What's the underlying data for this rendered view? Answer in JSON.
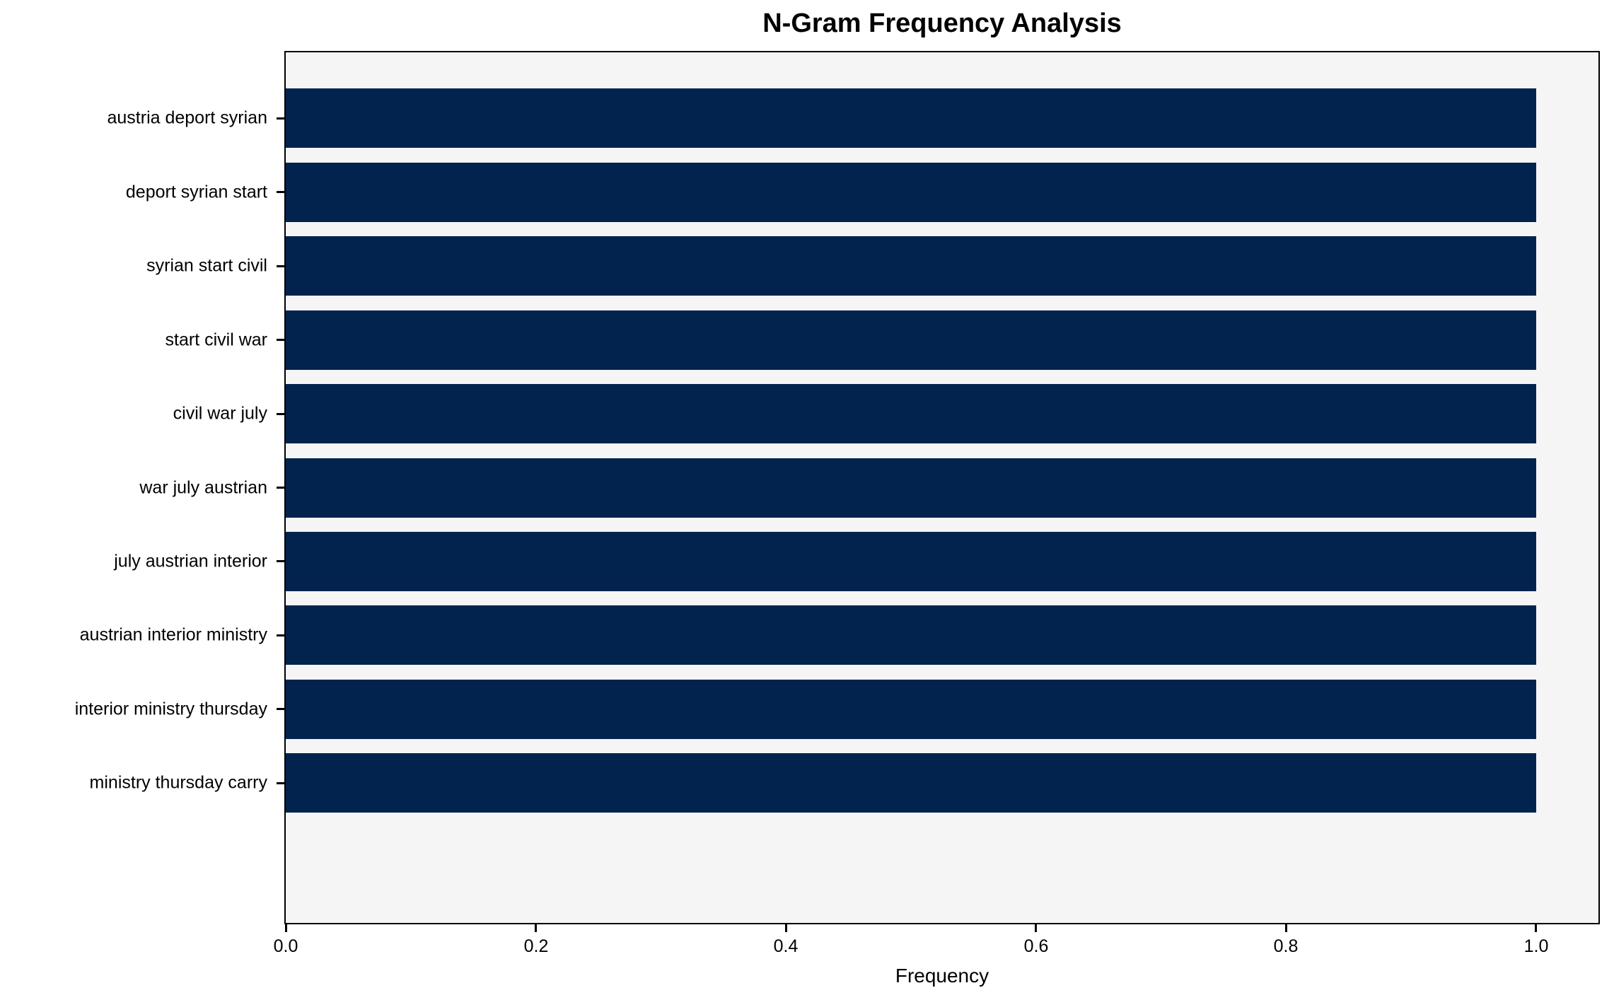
{
  "figure": {
    "title": "N-Gram Frequency Analysis",
    "xlabel": "Frequency"
  },
  "colors": {
    "bar": "#02234e",
    "plot_background": "#f5f5f6",
    "figure_background": "#ffffff",
    "axis": "#000000",
    "text": "#000000"
  },
  "chart_data": {
    "type": "bar",
    "orientation": "horizontal",
    "title": "N-Gram Frequency Analysis",
    "xlabel": "Frequency",
    "ylabel": "",
    "categories": [
      "austria deport syrian",
      "deport syrian start",
      "syrian start civil",
      "start civil war",
      "civil war july",
      "war july austrian",
      "july austrian interior",
      "austrian interior ministry",
      "interior ministry thursday",
      "ministry thursday carry"
    ],
    "values": [
      1.0,
      1.0,
      1.0,
      1.0,
      1.0,
      1.0,
      1.0,
      1.0,
      1.0,
      1.0
    ],
    "xlim": [
      0,
      1.05
    ],
    "xticks": [
      0.0,
      0.2,
      0.4,
      0.6,
      0.8,
      1.0
    ],
    "xtick_labels": [
      "0.0",
      "0.2",
      "0.4",
      "0.6",
      "0.8",
      "1.0"
    ],
    "grid": false,
    "legend": null,
    "bar_relative_height": 0.8,
    "category_axis_pad": 0.89
  }
}
